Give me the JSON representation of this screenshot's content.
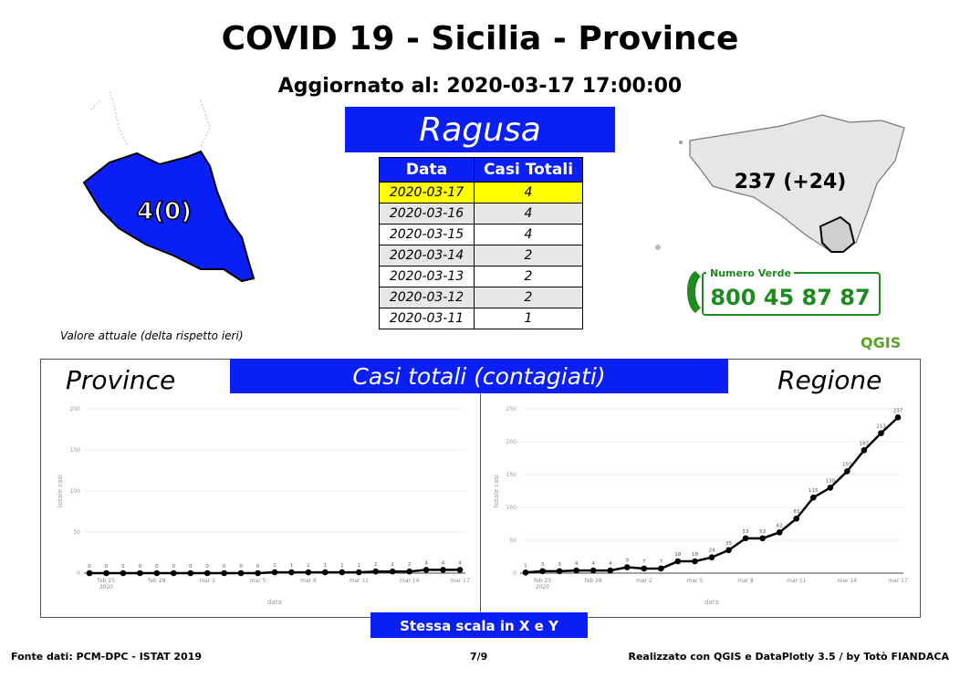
{
  "title": "COVID 19 - Sicilia - Province",
  "subtitle": "Aggiornato al: 2020-03-17 17:00:00",
  "province": "Ragusa",
  "province_value": "4(0)",
  "region_value": "237 (+24)",
  "table": {
    "headers": [
      "Data",
      "Casi Totali"
    ],
    "rows": [
      {
        "date": "2020-03-17",
        "value": "4"
      },
      {
        "date": "2020-03-16",
        "value": "4"
      },
      {
        "date": "2020-03-15",
        "value": "4"
      },
      {
        "date": "2020-03-14",
        "value": "2"
      },
      {
        "date": "2020-03-13",
        "value": "2"
      },
      {
        "date": "2020-03-12",
        "value": "2"
      },
      {
        "date": "2020-03-11",
        "value": "1"
      }
    ]
  },
  "legend_note": "Valore attuale (delta rispetto ieri)",
  "phone": {
    "label": "Numero Verde",
    "number": "800 45 87 87"
  },
  "qgis_logo": "QGIS",
  "casi_label": "Casi totali (contagiati)",
  "left_panel_label": "Province",
  "right_panel_label": "Regione",
  "scale_note": "Stessa scala in X e Y",
  "footer": {
    "left": "Fonte dati: PCM-DPC - ISTAT 2019",
    "page": "7/9",
    "right": "Realizzato con QGIS e DataPlotly 3.5 / by Totò FIANDACA"
  },
  "colors": {
    "blue": "#0a1ff5",
    "highlight": "#ffff00",
    "qgis_green": "#5aa12a",
    "phone_green": "#1f8a1f"
  },
  "chart_data": [
    {
      "type": "line",
      "xlabel": "data",
      "ylabel": "totale casi",
      "x_tick_labels": [
        "feb 25\n2020",
        "feb 28",
        "mar 2",
        "mar 5",
        "mar 8",
        "mar 11",
        "mar 14",
        "mar 17"
      ],
      "yticks": [
        0,
        50,
        100,
        150,
        200
      ],
      "ylim": [
        0,
        200
      ],
      "x": [
        "2020-02-24",
        "2020-02-25",
        "2020-02-26",
        "2020-02-27",
        "2020-02-28",
        "2020-02-29",
        "2020-03-01",
        "2020-03-02",
        "2020-03-03",
        "2020-03-04",
        "2020-03-05",
        "2020-03-06",
        "2020-03-07",
        "2020-03-08",
        "2020-03-09",
        "2020-03-10",
        "2020-03-11",
        "2020-03-12",
        "2020-03-13",
        "2020-03-14",
        "2020-03-15",
        "2020-03-16",
        "2020-03-17"
      ],
      "values": [
        0,
        0,
        0,
        0,
        0,
        0,
        0,
        0,
        0,
        0,
        0,
        1,
        1,
        1,
        1,
        1,
        1,
        2,
        2,
        2,
        4,
        4,
        4
      ]
    },
    {
      "type": "line",
      "xlabel": "data",
      "ylabel": "totale casi",
      "x_tick_labels": [
        "feb 25\n2020",
        "feb 28",
        "mar 2",
        "mar 5",
        "mar 8",
        "mar 11",
        "mar 14",
        "mar 17"
      ],
      "yticks": [
        0,
        50,
        100,
        150,
        200,
        250
      ],
      "ylim": [
        0,
        250
      ],
      "x": [
        "2020-02-24",
        "2020-02-25",
        "2020-02-26",
        "2020-02-27",
        "2020-02-28",
        "2020-02-29",
        "2020-03-01",
        "2020-03-02",
        "2020-03-03",
        "2020-03-04",
        "2020-03-05",
        "2020-03-06",
        "2020-03-07",
        "2020-03-08",
        "2020-03-09",
        "2020-03-10",
        "2020-03-11",
        "2020-03-12",
        "2020-03-13",
        "2020-03-14",
        "2020-03-15",
        "2020-03-16",
        "2020-03-17"
      ],
      "values": [
        1,
        3,
        3,
        4,
        4,
        4,
        9,
        7,
        7,
        18,
        18,
        24,
        35,
        53,
        53,
        62,
        83,
        115,
        130,
        155,
        187,
        213,
        237
      ]
    }
  ]
}
